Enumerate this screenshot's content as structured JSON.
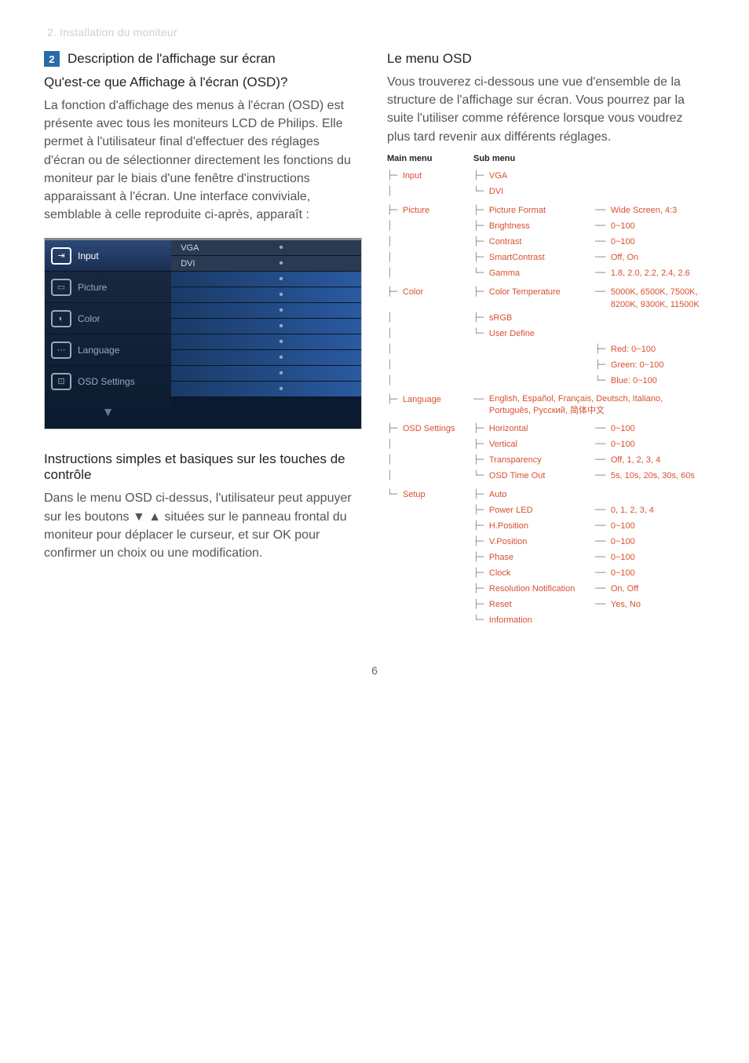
{
  "breadcrumb": "2. Installation du moniteur",
  "page_number": "6",
  "left": {
    "badge": "2",
    "section_title": "Description de l'affichage sur écran",
    "q_title": "Qu'est-ce que Affichage à l'écran (OSD)?",
    "q_body": "La fonction d'affichage des menus à l'écran (OSD) est présente avec tous les moniteurs LCD de Philips. Elle permet à l'utilisateur final d'effectuer des réglages d'écran ou de sélectionner directement les fonctions du moniteur par le biais d'une fenêtre d'instructions apparaissant à l'écran. Une interface conviviale, semblable à celle reproduite ci-après, apparaît :",
    "osd_items": [
      "Input",
      "Picture",
      "Color",
      "Language",
      "OSD Settings"
    ],
    "osd_sub_top": [
      "VGA",
      "DVI"
    ],
    "instr_title": "Instructions simples et basiques sur les touches de contrôle",
    "instr_body_1": "Dans le menu OSD ci-dessus, l'utilisateur peut appuyer sur les boutons ",
    "instr_body_2": " situées sur le panneau frontal du moniteur pour déplacer le curseur, et sur ",
    "ok": "OK",
    "instr_body_3": " pour confirmer un choix ou une modification."
  },
  "right": {
    "title": "Le menu OSD",
    "body": "Vous trouverez ci-dessous une vue d'ensemble de la structure de l'affichage sur écran. Vous pourrez par la suite l'utiliser comme référence lorsque vous voudrez plus tard revenir aux différents réglages.",
    "main_menu_h": "Main menu",
    "sub_menu_h": "Sub menu",
    "tree": {
      "Input": {
        "subs": [
          {
            "n": "VGA"
          },
          {
            "n": "DVI"
          }
        ]
      },
      "Picture": {
        "subs": [
          {
            "n": "Picture Format",
            "v": "Wide Screen, 4:3"
          },
          {
            "n": "Brightness",
            "v": "0~100"
          },
          {
            "n": "Contrast",
            "v": "0~100"
          },
          {
            "n": "SmartContrast",
            "v": "Off, On"
          },
          {
            "n": "Gamma",
            "v": "1.8, 2.0, 2.2, 2.4, 2.6"
          }
        ]
      },
      "Color": {
        "subs": [
          {
            "n": "Color Temperature",
            "v": "5000K, 6500K, 7500K, 8200K, 9300K, 11500K"
          },
          {
            "n": "sRGB"
          },
          {
            "n": "User Define",
            "vs": [
              "Red: 0~100",
              "Green: 0~100",
              "Blue: 0~100"
            ]
          }
        ]
      },
      "Language": {
        "text": "English, Español, Français, Deutsch, Italiano, Português, Русский, 简体中文"
      },
      "OSD Settings": {
        "subs": [
          {
            "n": "Horizontal",
            "v": "0~100"
          },
          {
            "n": "Vertical",
            "v": "0~100"
          },
          {
            "n": "Transparency",
            "v": "Off, 1, 2, 3, 4"
          },
          {
            "n": "OSD Time Out",
            "v": "5s, 10s, 20s, 30s, 60s"
          }
        ]
      },
      "Setup": {
        "subs": [
          {
            "n": "Auto"
          },
          {
            "n": "Power LED",
            "v": "0, 1, 2, 3, 4"
          },
          {
            "n": "H.Position",
            "v": "0~100"
          },
          {
            "n": "V.Position",
            "v": "0~100"
          },
          {
            "n": "Phase",
            "v": "0~100"
          },
          {
            "n": "Clock",
            "v": "0~100"
          },
          {
            "n": "Resolution Notification",
            "v": "On, Off"
          },
          {
            "n": "Reset",
            "v": "Yes, No"
          },
          {
            "n": "Information"
          }
        ]
      }
    }
  }
}
